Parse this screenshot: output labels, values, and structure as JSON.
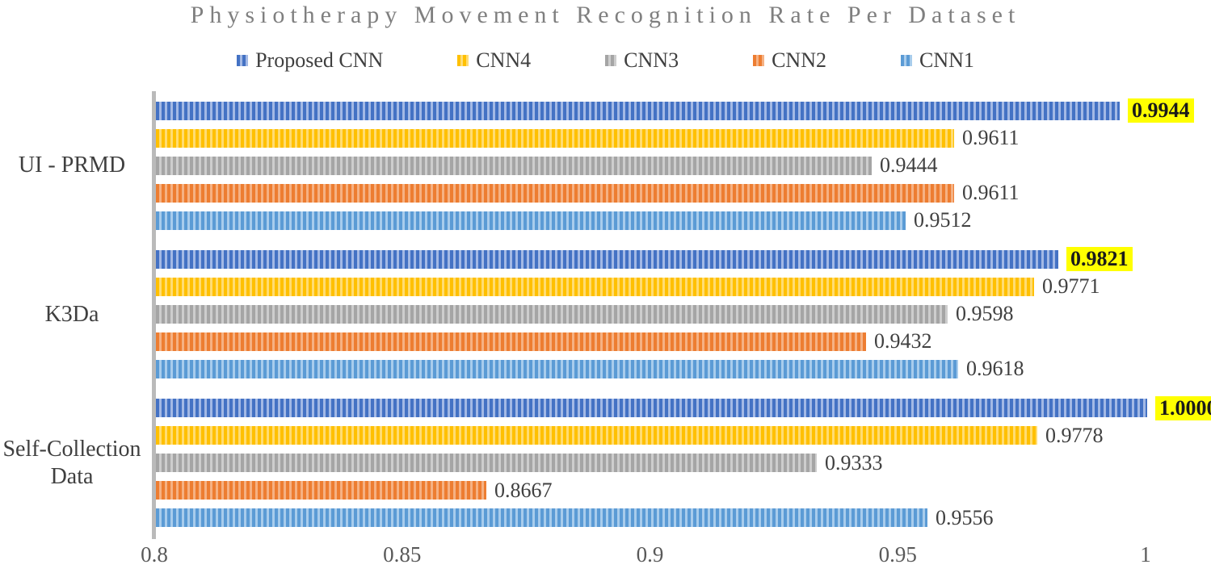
{
  "title": "Physiotherapy Movement Recognition Rate Per Dataset",
  "colors": {
    "title_text": "#7f7f7f",
    "body_text": "#3f3f3f",
    "value_text": "#404040",
    "tick_text": "#595959",
    "axis_line": "#bababa",
    "label_highlight_bg": "#ffff00"
  },
  "chart_data": {
    "type": "bar",
    "orientation": "horizontal",
    "title": "Physiotherapy Movement Recognition Rate Per Dataset",
    "categories": [
      "UI - PRMD",
      "K3Da",
      "Self-Collection Data"
    ],
    "series": [
      {
        "name": "Proposed CNN",
        "color": "#4472c4",
        "color_light": "#a3b9e5",
        "values": [
          0.9944,
          0.9821,
          1.0
        ],
        "label_highlight": true
      },
      {
        "name": "CNN4",
        "color": "#ffc000",
        "color_light": "#ffdc73",
        "values": [
          0.9611,
          0.9771,
          0.9778
        ],
        "label_highlight": false
      },
      {
        "name": "CNN3",
        "color": "#a5a5a5",
        "color_light": "#cdcdcd",
        "values": [
          0.9444,
          0.9598,
          0.9333
        ],
        "label_highlight": false
      },
      {
        "name": "CNN2",
        "color": "#ed7d31",
        "color_light": "#f5b183",
        "values": [
          0.9611,
          0.9432,
          0.8667
        ],
        "label_highlight": false
      },
      {
        "name": "CNN1",
        "color": "#5b9bd5",
        "color_light": "#a8ccec",
        "values": [
          0.9512,
          0.9618,
          0.9556
        ],
        "label_highlight": false
      }
    ],
    "value_label_decimals": 4,
    "xlim": [
      0.8,
      1.0
    ],
    "xticks": [
      {
        "value": 0.8,
        "label": "0.8"
      },
      {
        "value": 0.85,
        "label": "0.85"
      },
      {
        "value": 0.9,
        "label": "0.9"
      },
      {
        "value": 0.95,
        "label": "0.95"
      },
      {
        "value": 1.0,
        "label": "1"
      }
    ],
    "legend_position": "top",
    "grid": false,
    "bar_pattern": "vertical-stripes"
  }
}
